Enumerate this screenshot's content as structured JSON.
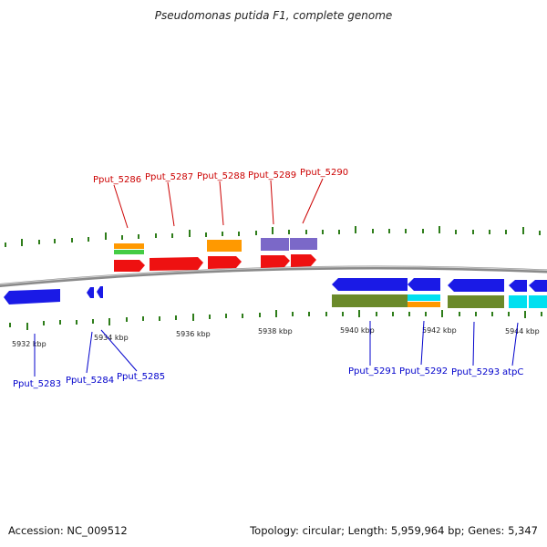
{
  "title": "Pseudomonas putida F1, complete genome",
  "footer": {
    "accession": "Accession: NC_009512",
    "summary": "Topology: circular; Length: 5,959,964 bp; Genes: 5,347"
  },
  "colors": {
    "backbone": "#8a8a8a",
    "tick": "#2e7d1a",
    "label_top": "#cc0000",
    "label_bottom": "#0000cc",
    "cds_red": "#ee1111",
    "cds_blue": "#1a1ae6",
    "cds_olive": "#6b8a2a",
    "cds_orange": "#ff9900",
    "cds_purple": "#7b68c8",
    "cds_green": "#44cc44",
    "cds_cyan": "#00e0f0"
  },
  "scale_labels": [
    "5932 kbp",
    "5934 kbp",
    "5936 kbp",
    "5938 kbp",
    "5940 kbp",
    "5942 kbp",
    "5944 kbp"
  ],
  "genes_top": [
    "Pput_5286",
    "Pput_5287",
    "Pput_5288",
    "Pput_5289",
    "Pput_5290"
  ],
  "genes_bottom": [
    "Pput_5283",
    "Pput_5284",
    "Pput_5285",
    "Pput_5291",
    "Pput_5292",
    "Pput_5293",
    "atpC"
  ]
}
